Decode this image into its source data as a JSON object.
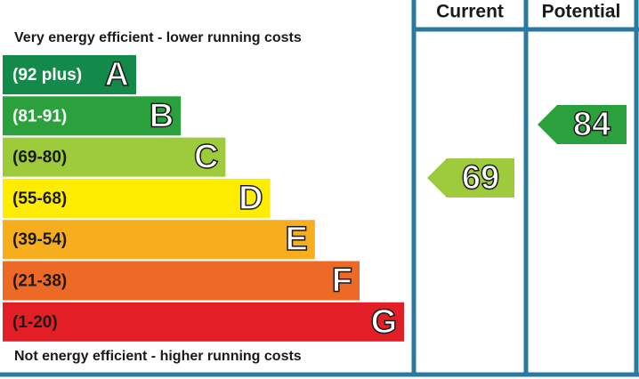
{
  "chart_data": {
    "type": "energy-rating",
    "top_note": "Very energy efficient - lower running costs",
    "bottom_note": "Not energy efficient - higher running costs",
    "columns": [
      "Current",
      "Potential"
    ],
    "bands": [
      {
        "range": "(92 plus)",
        "letter": "A",
        "color": "#138a4a",
        "text_color": "#ffffff"
      },
      {
        "range": "(81-91)",
        "letter": "B",
        "color": "#2ba13d",
        "text_color": "#ffffff"
      },
      {
        "range": "(69-80)",
        "letter": "C",
        "color": "#9dcb3c",
        "text_color": "#1a1a1a"
      },
      {
        "range": "(55-68)",
        "letter": "D",
        "color": "#ffed00",
        "text_color": "#1a1a1a"
      },
      {
        "range": "(39-54)",
        "letter": "E",
        "color": "#f6ae1f",
        "text_color": "#1a1a1a"
      },
      {
        "range": "(21-38)",
        "letter": "F",
        "color": "#ec6a25",
        "text_color": "#1a1a1a"
      },
      {
        "range": "(1-20)",
        "letter": "G",
        "color": "#e21f26",
        "text_color": "#1a1a1a"
      }
    ],
    "ratings": [
      {
        "value": 69,
        "color": "#9dcb3c"
      },
      {
        "value": 84,
        "color": "#2ba13d"
      }
    ],
    "frame_color": "#2a7aa0"
  }
}
